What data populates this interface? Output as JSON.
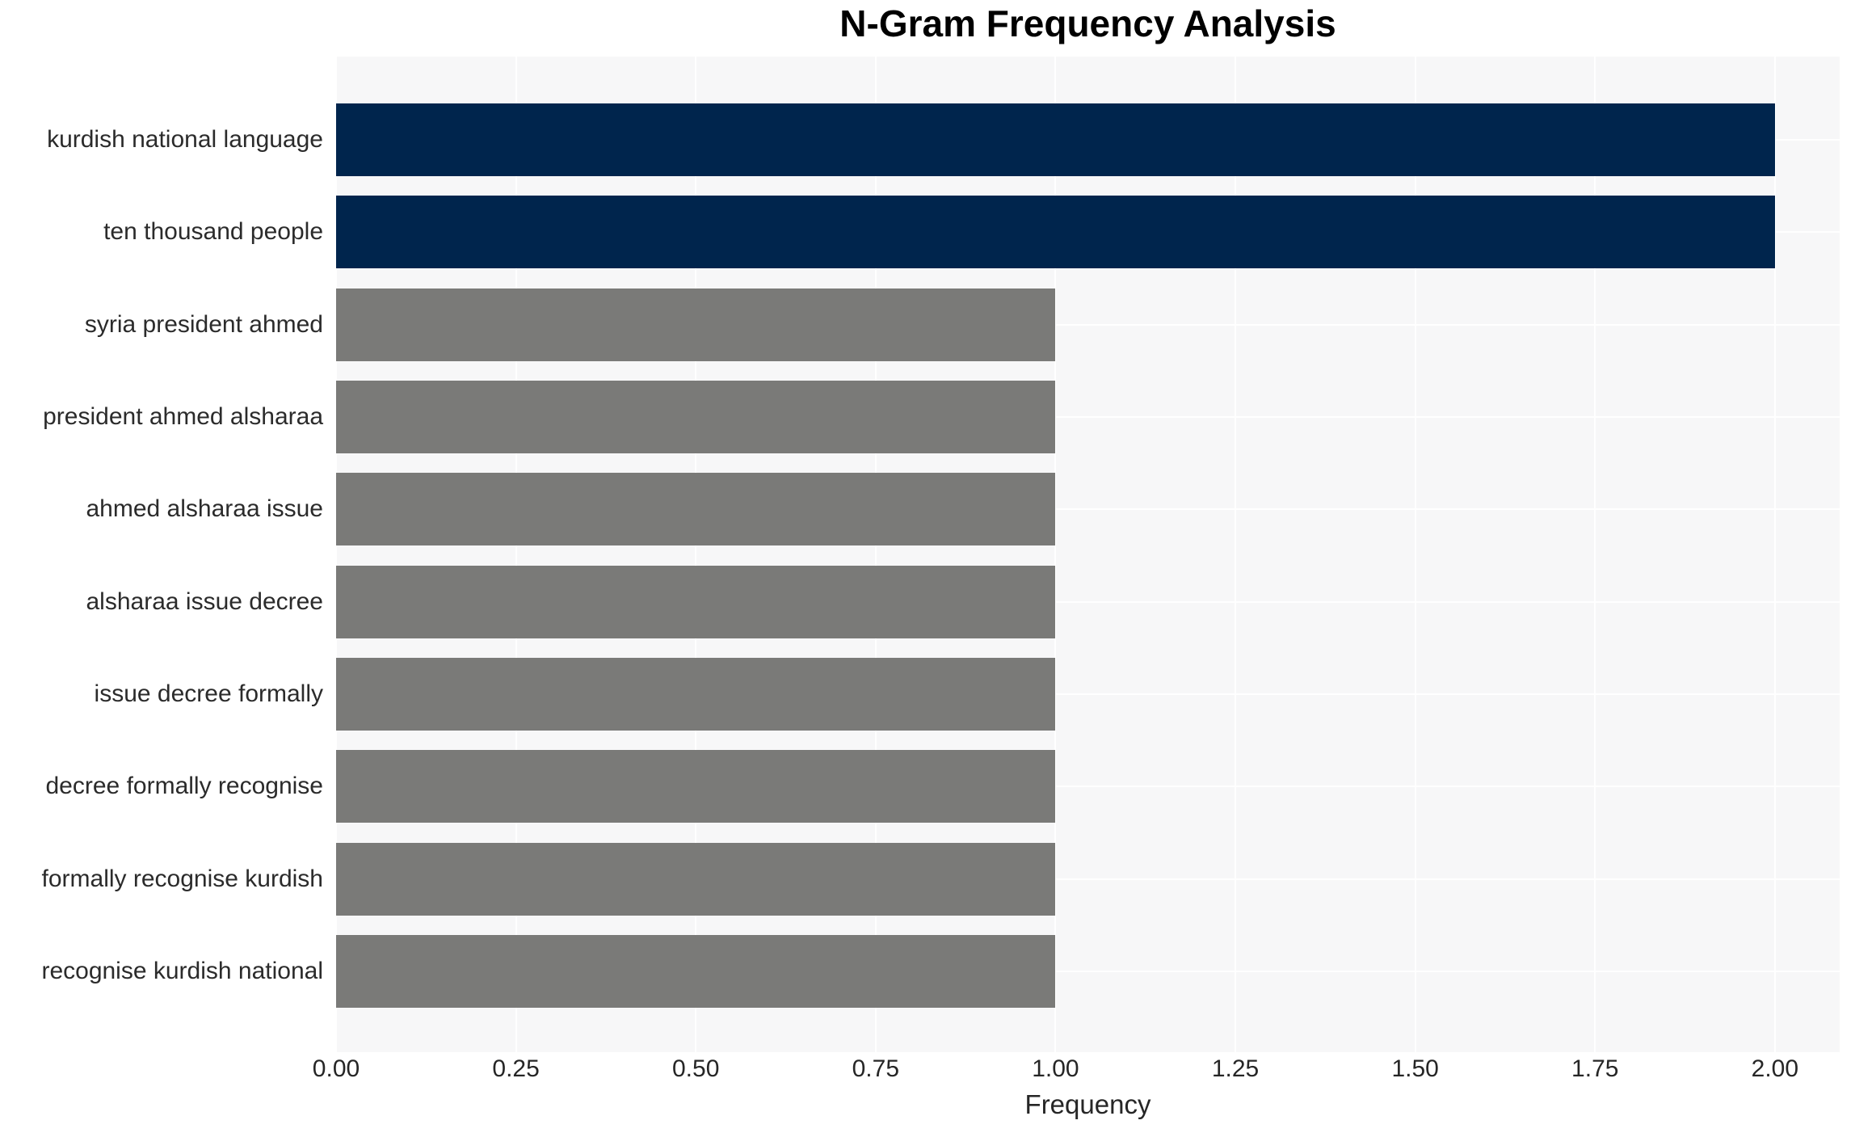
{
  "chart_data": {
    "type": "bar",
    "orientation": "horizontal",
    "title": "N-Gram Frequency Analysis",
    "xlabel": "Frequency",
    "ylabel": "",
    "categories": [
      "kurdish national language",
      "ten thousand people",
      "syria president ahmed",
      "president ahmed alsharaa",
      "ahmed alsharaa issue",
      "alsharaa issue decree",
      "issue decree formally",
      "decree formally recognise",
      "formally recognise kurdish",
      "recognise kurdish national"
    ],
    "values": [
      2,
      2,
      1,
      1,
      1,
      1,
      1,
      1,
      1,
      1
    ],
    "bar_colors": [
      "#00254d",
      "#00254d",
      "#7a7a78",
      "#7a7a78",
      "#7a7a78",
      "#7a7a78",
      "#7a7a78",
      "#7a7a78",
      "#7a7a78",
      "#7a7a78"
    ],
    "x_ticks": {
      "values": [
        0,
        0.25,
        0.5,
        0.75,
        1.0,
        1.25,
        1.5,
        1.75,
        2.0
      ],
      "labels": [
        "0.00",
        "0.25",
        "0.50",
        "0.75",
        "1.00",
        "1.25",
        "1.50",
        "1.75",
        "2.00"
      ]
    },
    "xlim": [
      0,
      2.09
    ],
    "grid": {
      "show": true,
      "color": "#ffffff",
      "vertical": true,
      "horizontal": true
    },
    "legend": {
      "show": false
    },
    "colors": {
      "highlight_bar": "#00254d",
      "default_bar": "#7a7a78",
      "plot_background": "#f7f7f8",
      "figure_background": "#ffffff",
      "gridline": "#ffffff",
      "tick_text": "#262626",
      "title_text": "#000000"
    }
  }
}
